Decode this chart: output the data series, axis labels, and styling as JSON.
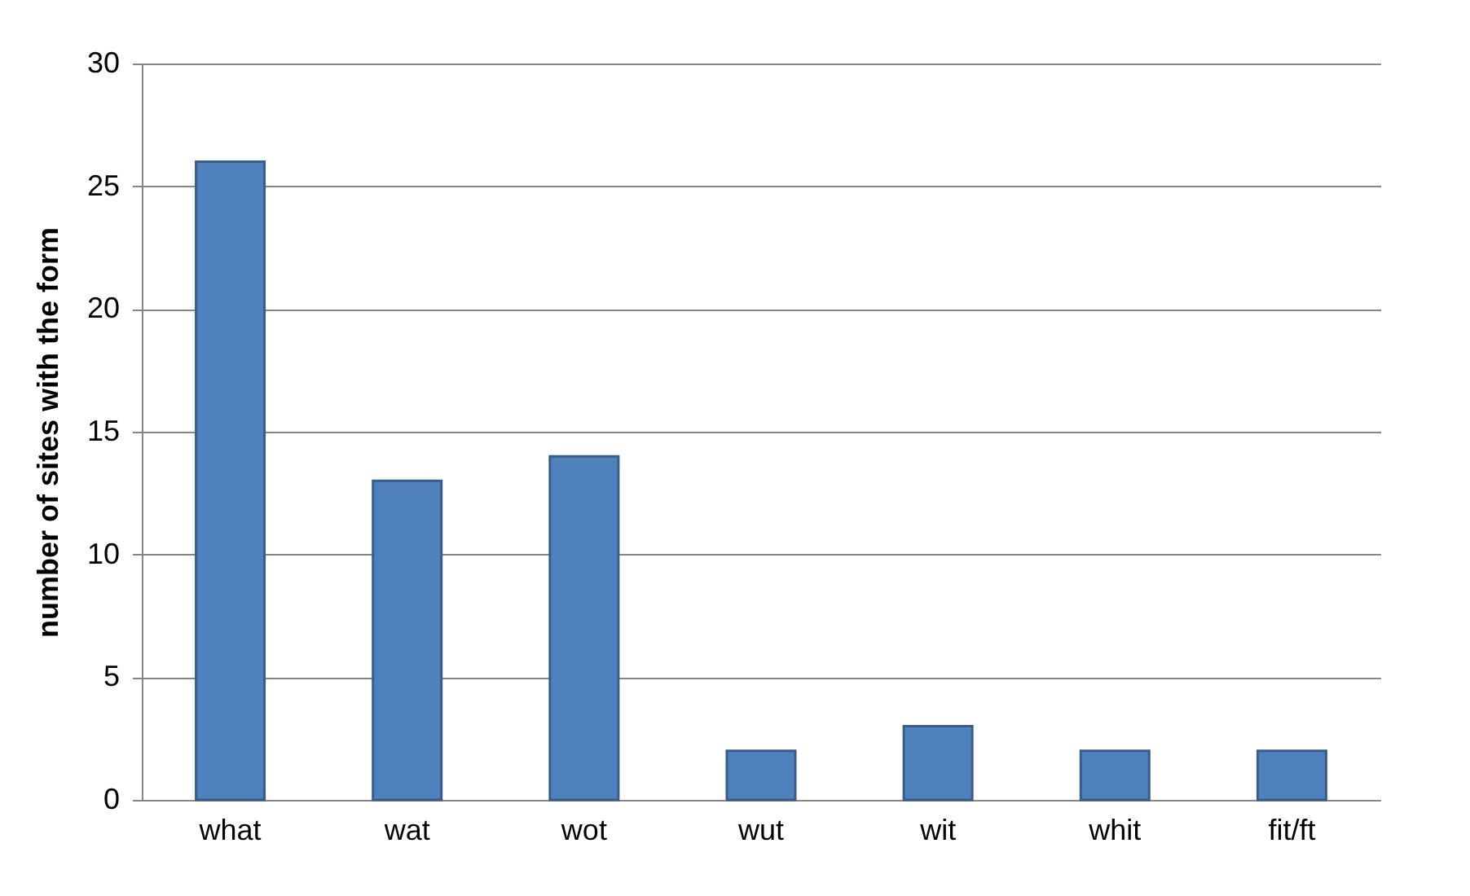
{
  "chart_data": {
    "type": "bar",
    "ylabel": "number of sites with the form",
    "categories": [
      "what",
      "wat",
      "wot",
      "wut",
      "wit",
      "whit",
      "fit/ft"
    ],
    "values": [
      26,
      13,
      14,
      2,
      3,
      2,
      2
    ],
    "color": "#4f81bd",
    "ylim": [
      0,
      30
    ],
    "yticks": [
      0,
      5,
      10,
      15,
      20,
      25,
      30
    ],
    "grid": "y"
  }
}
